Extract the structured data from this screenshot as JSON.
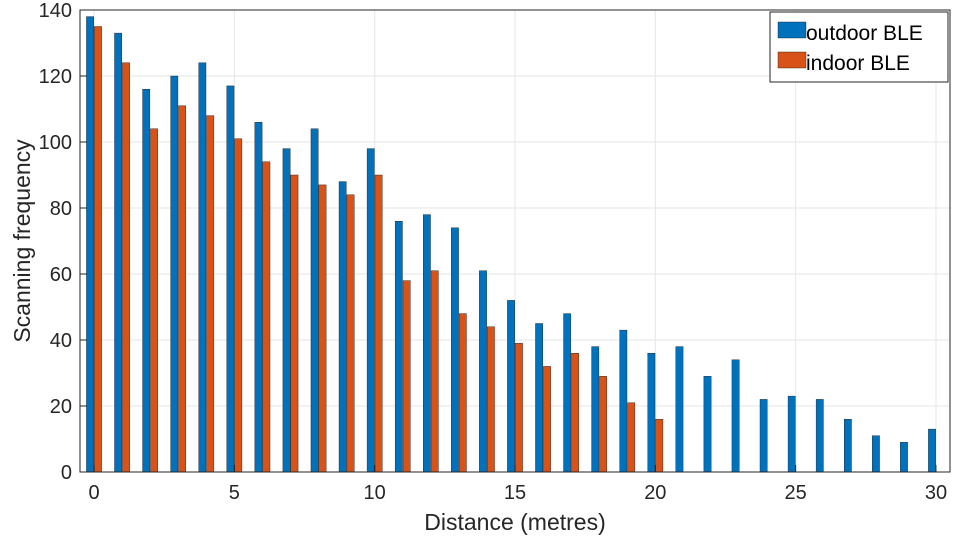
{
  "chart_data": {
    "type": "bar",
    "xlabel": "Distance (metres)",
    "ylabel": "Scanning frequency",
    "xlim": [
      -0.5,
      30.5
    ],
    "ylim": [
      0,
      140
    ],
    "xticks": [
      0,
      5,
      10,
      15,
      20,
      25,
      30
    ],
    "yticks": [
      0,
      20,
      40,
      60,
      80,
      100,
      120,
      140
    ],
    "grid": true,
    "legend_position": "top-right",
    "x": [
      0,
      1,
      2,
      3,
      4,
      5,
      6,
      7,
      8,
      9,
      10,
      11,
      12,
      13,
      14,
      15,
      16,
      17,
      18,
      19,
      20,
      21,
      22,
      23,
      24,
      25,
      26,
      27,
      28,
      29,
      30
    ],
    "series": [
      {
        "name": "outdoor BLE",
        "color": "#0072BD",
        "values": [
          138,
          133,
          116,
          120,
          124,
          117,
          106,
          98,
          104,
          88,
          98,
          76,
          78,
          74,
          61,
          52,
          45,
          48,
          38,
          43,
          36,
          38,
          29,
          34,
          22,
          23,
          22,
          16,
          11,
          9,
          13
        ]
      },
      {
        "name": "indoor BLE",
        "color": "#D95319",
        "values": [
          135,
          124,
          104,
          111,
          108,
          101,
          94,
          90,
          87,
          84,
          90,
          58,
          61,
          48,
          44,
          39,
          32,
          36,
          29,
          21,
          16,
          null,
          null,
          null,
          null,
          null,
          null,
          null,
          null,
          null,
          null
        ]
      }
    ]
  }
}
